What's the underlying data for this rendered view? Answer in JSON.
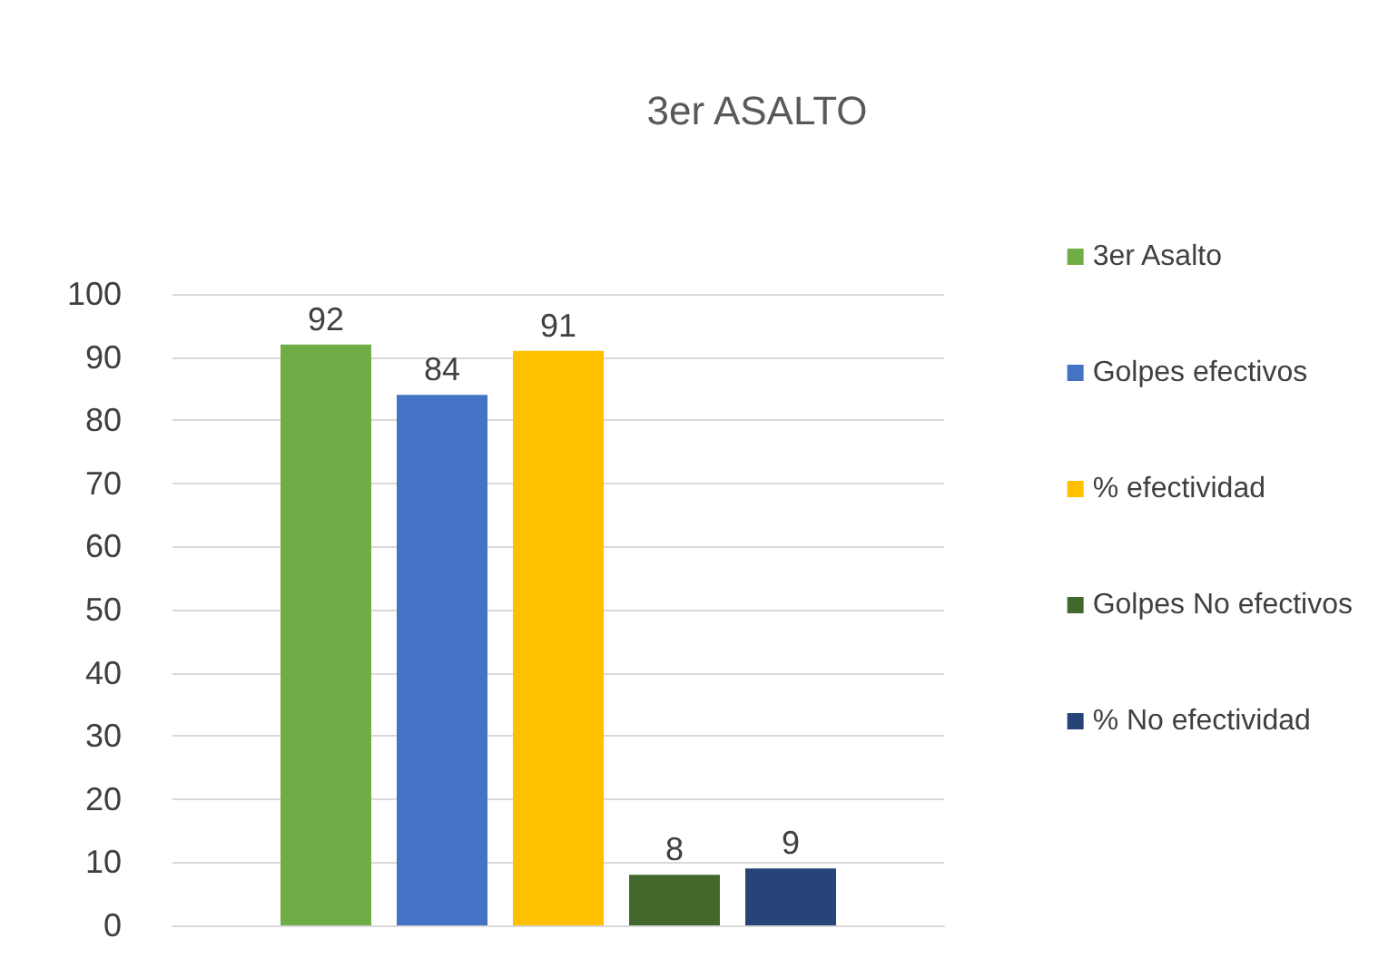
{
  "chart_data": {
    "type": "bar",
    "title": "3er ASALTO",
    "categories": [
      null
    ],
    "series": [
      {
        "name": "3er Asalto",
        "color": "#70ad47",
        "values": [
          92
        ]
      },
      {
        "name": "Golpes efectivos",
        "color": "#4472c4",
        "values": [
          84
        ]
      },
      {
        "name": "% efectividad",
        "color": "#ffc000",
        "values": [
          91
        ]
      },
      {
        "name": "Golpes No efectivos",
        "color": "#43682b",
        "values": [
          8
        ]
      },
      {
        "name": "% No efectividad",
        "color": "#264478",
        "values": [
          9
        ]
      }
    ],
    "ylim": [
      0,
      100
    ],
    "yticks": [
      0,
      10,
      20,
      30,
      40,
      50,
      60,
      70,
      80,
      90,
      100
    ],
    "grid": "y",
    "legend": "right",
    "data_labels": true
  }
}
